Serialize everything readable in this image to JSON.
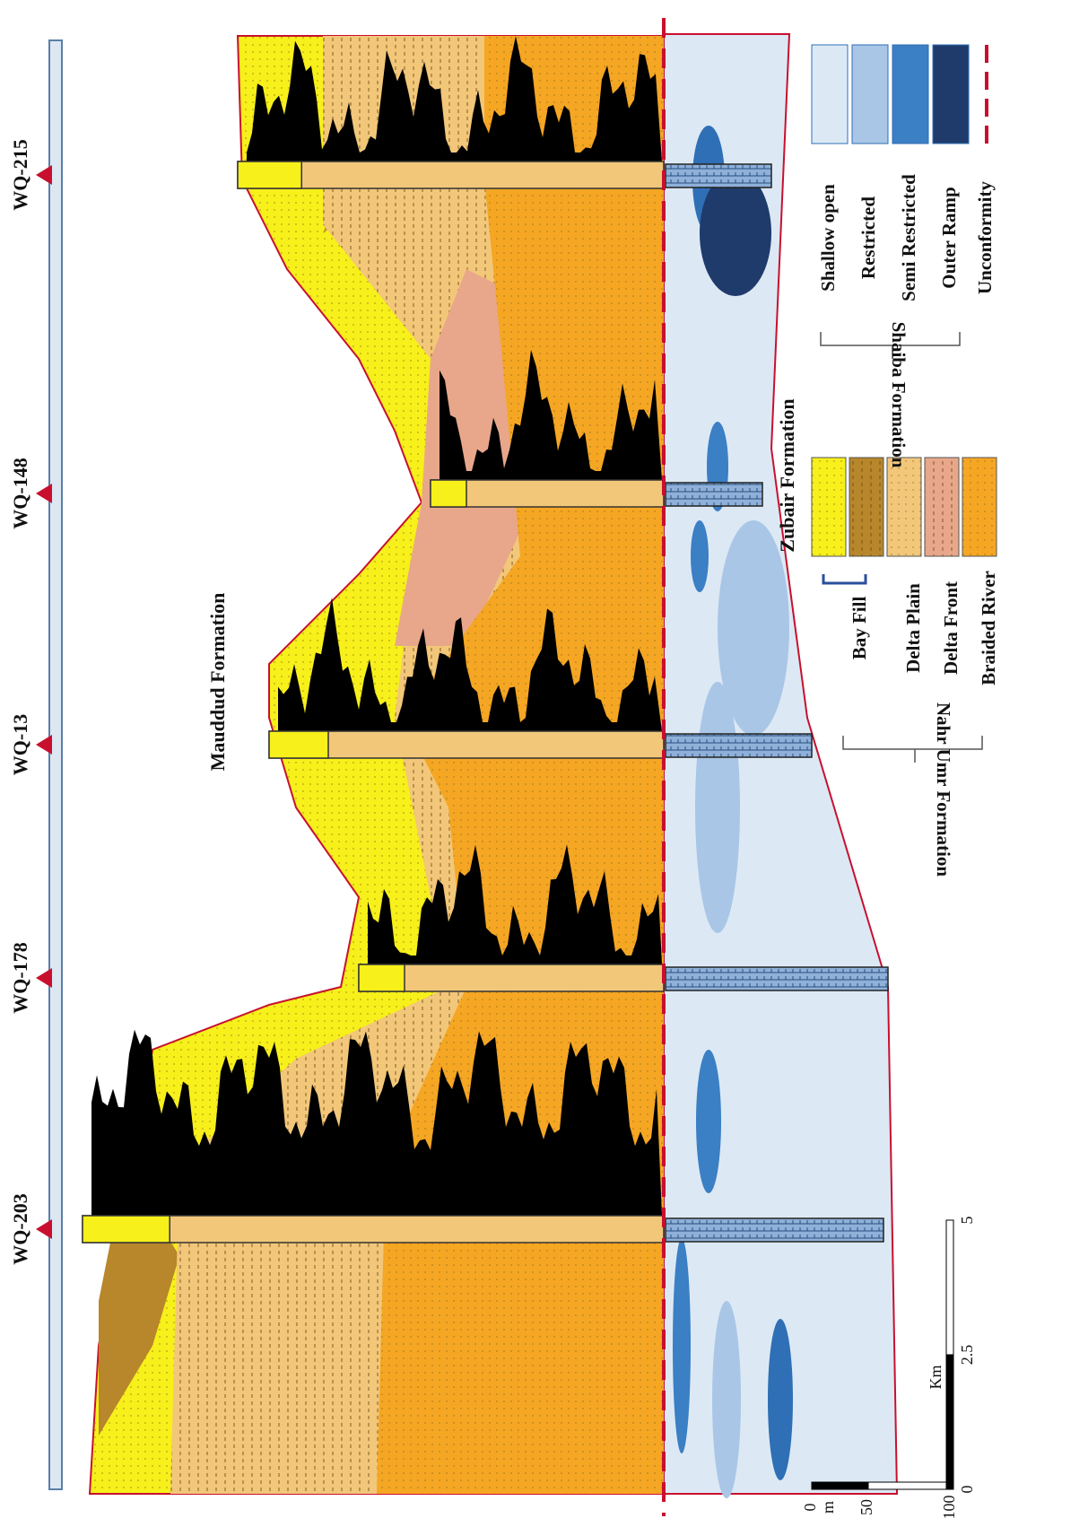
{
  "wells": [
    "WQ-203",
    "WQ-178",
    "WQ-13",
    "WQ-148",
    "WQ-215"
  ],
  "formations": {
    "upper": "Mauddud Formation",
    "lower": "Zubair Formation"
  },
  "legend": {
    "nahr_umr": {
      "title": "Nahr Umr Formation",
      "group": "Bay Fill",
      "items": [
        "Delta Plain",
        "Delta Front",
        "Braided River"
      ]
    },
    "shaiba": {
      "title": "Shaiba Formation",
      "items": [
        "Shallow open",
        "Restricted",
        "Semi Restricted",
        "Outer Ramp"
      ]
    },
    "unconformity": "Unconformity"
  },
  "scale": {
    "vertical": {
      "labels": [
        "0",
        "50",
        "100"
      ],
      "unit": "m"
    },
    "horizontal": {
      "labels": [
        "0",
        "2.5",
        "5"
      ],
      "unit": "Km"
    }
  }
}
